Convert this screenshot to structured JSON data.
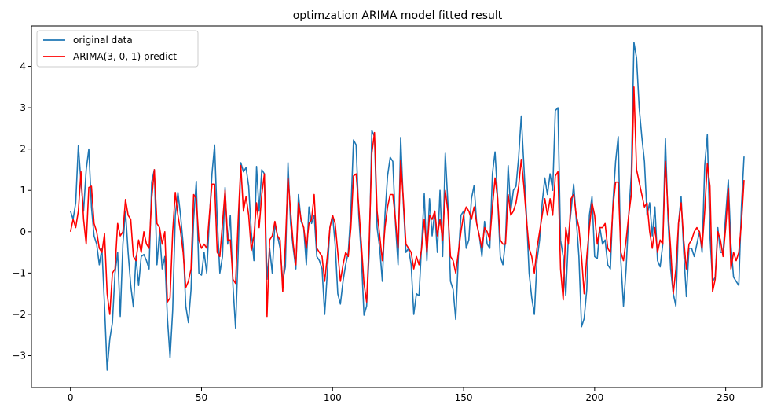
{
  "chart_data": {
    "type": "line",
    "title": "optimzation ARIMA model fitted result",
    "xlabel": "",
    "ylabel": "",
    "xlim": [
      -14.9,
      263.9
    ],
    "ylim": [
      -3.77,
      4.98
    ],
    "x_ticks": [
      0,
      50,
      100,
      150,
      200,
      250
    ],
    "x_tick_labels": [
      "0",
      "50",
      "100",
      "150",
      "200",
      "250"
    ],
    "y_ticks": [
      -3,
      -2,
      -1,
      0,
      1,
      2,
      3,
      4
    ],
    "y_tick_labels": [
      "−3",
      "−2",
      "−1",
      "0",
      "1",
      "2",
      "3",
      "4"
    ],
    "grid": false,
    "legend_position": "top-left",
    "series": [
      {
        "name": "original data",
        "color": "#1f77b4",
        "x_start": 0,
        "values": [
          0.5,
          0.3,
          0.7,
          2.08,
          1.2,
          0.5,
          1.5,
          2.0,
          0.6,
          -0.1,
          -0.3,
          -0.8,
          -0.4,
          -1.8,
          -3.35,
          -2.6,
          -2.2,
          -1.0,
          -0.5,
          -2.05,
          -0.3,
          0.5,
          -0.5,
          -1.3,
          -1.82,
          -0.6,
          -1.3,
          -0.6,
          -0.55,
          -0.7,
          -0.9,
          1.2,
          1.5,
          -0.8,
          0.0,
          -0.9,
          -0.6,
          -2.1,
          -3.05,
          -1.9,
          0.4,
          0.95,
          0.4,
          -0.3,
          -1.8,
          -2.2,
          -1.4,
          0.3,
          1.22,
          -1.0,
          -1.05,
          -0.5,
          -1.0,
          0.3,
          1.4,
          2.1,
          0.3,
          -1.0,
          -0.6,
          1.07,
          -0.3,
          0.4,
          -1.3,
          -2.33,
          -0.5,
          1.67,
          1.45,
          1.55,
          1.1,
          0.0,
          -0.7,
          1.58,
          0.5,
          1.5,
          1.4,
          -1.15,
          -0.4,
          -1.0,
          0.2,
          -0.1,
          -0.4,
          -1.2,
          -0.85,
          1.67,
          0.2,
          -0.4,
          -0.9,
          0.9,
          0.25,
          0.1,
          -0.8,
          0.6,
          0.2,
          0.4,
          -0.6,
          -0.7,
          -0.9,
          -2.0,
          -1.0,
          0.1,
          0.4,
          -0.3,
          -1.5,
          -1.75,
          -1.2,
          -0.8,
          -0.5,
          0.5,
          2.22,
          2.1,
          0.4,
          -0.6,
          -2.02,
          -1.8,
          -0.5,
          2.45,
          2.3,
          0.1,
          -0.4,
          -1.2,
          0.4,
          1.35,
          1.8,
          1.7,
          0.2,
          -0.8,
          2.28,
          0.7,
          -0.5,
          -0.4,
          -0.8,
          -2.0,
          -1.5,
          -1.55,
          -0.3,
          0.92,
          -0.7,
          0.8,
          -0.1,
          0.5,
          -0.5,
          1.0,
          -0.6,
          1.9,
          0.7,
          -1.2,
          -1.4,
          -2.12,
          -0.6,
          0.4,
          0.5,
          -0.4,
          -0.2,
          0.8,
          1.12,
          0.2,
          -0.1,
          -0.6,
          0.25,
          -0.3,
          -0.4,
          1.4,
          1.93,
          0.8,
          -0.6,
          -0.8,
          -0.2,
          1.6,
          0.5,
          1.0,
          1.1,
          1.8,
          2.8,
          1.6,
          0.4,
          -1.0,
          -1.6,
          -2.0,
          -0.7,
          -0.2,
          0.7,
          1.3,
          0.9,
          1.4,
          1.0,
          2.93,
          3.0,
          -0.2,
          -0.6,
          -1.55,
          -0.1,
          0.5,
          1.15,
          0.3,
          -0.6,
          -2.3,
          -2.1,
          -1.4,
          0.4,
          0.85,
          -0.6,
          -0.65,
          0.1,
          -0.3,
          -0.2,
          -0.8,
          -0.9,
          0.7,
          1.7,
          2.3,
          -0.7,
          -1.8,
          -0.9,
          0.4,
          1.4,
          4.58,
          4.2,
          3.0,
          2.3,
          1.7,
          0.4,
          0.7,
          -0.1,
          0.6,
          -0.7,
          -0.85,
          -0.3,
          2.25,
          0.3,
          -0.9,
          -1.5,
          -1.8,
          0.2,
          0.85,
          -0.5,
          -1.57,
          -0.4,
          -0.4,
          -0.6,
          -0.3,
          0.0,
          -0.5,
          1.6,
          2.35,
          -0.1,
          -1.2,
          -1.1,
          0.1,
          -0.5,
          -0.5,
          0.4,
          1.25,
          -0.3,
          -1.1,
          -1.2,
          -1.3,
          0.6,
          1.82
        ]
      },
      {
        "name": "ARIMA(3, 0, 1) predict",
        "color": "#ff0000",
        "x_start": 0,
        "values": [
          0.0,
          0.3,
          0.1,
          0.5,
          1.45,
          0.3,
          -0.3,
          1.07,
          1.1,
          0.2,
          0.0,
          -0.4,
          -0.5,
          -0.05,
          -1.5,
          -2.0,
          -1.0,
          -0.9,
          0.2,
          -0.1,
          0.0,
          0.78,
          0.4,
          0.3,
          -0.6,
          -0.7,
          -0.2,
          -0.5,
          0.0,
          -0.3,
          -0.4,
          0.8,
          1.5,
          0.2,
          0.1,
          -0.3,
          0.0,
          -1.7,
          -1.6,
          0.0,
          0.95,
          0.4,
          0.0,
          -0.5,
          -1.35,
          -1.2,
          -0.9,
          0.9,
          0.8,
          -0.2,
          -0.4,
          -0.3,
          -0.4,
          0.4,
          1.15,
          1.15,
          -0.5,
          -0.6,
          0.2,
          1.0,
          -0.2,
          -0.2,
          -1.15,
          -1.25,
          0.3,
          1.6,
          0.5,
          0.85,
          0.4,
          -0.45,
          -0.1,
          0.7,
          0.1,
          0.9,
          1.4,
          -2.05,
          -0.2,
          -0.1,
          0.25,
          -0.1,
          -0.2,
          -1.45,
          -0.3,
          1.3,
          0.5,
          -0.3,
          -0.8,
          0.7,
          0.3,
          0.1,
          -0.4,
          0.2,
          0.3,
          0.9,
          -0.4,
          -0.5,
          -0.6,
          -1.2,
          -0.6,
          0.1,
          0.4,
          0.2,
          -0.5,
          -1.2,
          -0.8,
          -0.5,
          -0.6,
          0.1,
          1.35,
          1.4,
          0.6,
          -0.3,
          -1.25,
          -1.7,
          -0.2,
          1.9,
          2.4,
          0.5,
          -0.1,
          -0.7,
          0.1,
          0.6,
          0.9,
          0.9,
          0.3,
          -0.4,
          1.72,
          0.8,
          -0.3,
          -0.4,
          -0.5,
          -0.9,
          -0.6,
          -0.8,
          -0.4,
          0.3,
          -0.5,
          0.4,
          0.3,
          0.5,
          -0.1,
          0.3,
          -0.2,
          1.0,
          0.5,
          -0.6,
          -0.7,
          -1.0,
          -0.5,
          0.0,
          0.4,
          0.6,
          0.5,
          0.3,
          0.6,
          0.2,
          -0.1,
          -0.4,
          0.1,
          0.0,
          -0.2,
          0.6,
          1.3,
          0.8,
          -0.2,
          -0.3,
          -0.3,
          0.9,
          0.4,
          0.5,
          0.7,
          1.1,
          1.75,
          1.1,
          0.3,
          -0.4,
          -0.6,
          -1.0,
          -0.4,
          0.0,
          0.4,
          0.8,
          0.4,
          0.8,
          0.4,
          1.35,
          1.45,
          -0.9,
          -1.65,
          0.1,
          -0.3,
          0.8,
          0.9,
          0.4,
          0.1,
          -0.6,
          -1.5,
          -0.6,
          0.1,
          0.7,
          0.4,
          -0.3,
          0.1,
          0.1,
          0.2,
          -0.4,
          -0.5,
          0.6,
          1.2,
          1.2,
          -0.5,
          -0.7,
          -0.2,
          0.4,
          0.9,
          3.5,
          1.5,
          1.2,
          0.9,
          0.6,
          0.7,
          0.0,
          -0.4,
          0.1,
          -0.5,
          -0.2,
          -0.3,
          1.7,
          0.5,
          -0.4,
          -1.5,
          -0.9,
          0.2,
          0.7,
          -0.2,
          -0.9,
          -0.3,
          -0.2,
          0.0,
          0.1,
          0.0,
          -0.4,
          0.5,
          1.65,
          1.1,
          -1.45,
          -1.15,
          0.0,
          -0.2,
          -0.6,
          0.1,
          1.05,
          -0.9,
          -0.5,
          -0.7,
          -0.5,
          0.2,
          1.25
        ]
      }
    ]
  }
}
